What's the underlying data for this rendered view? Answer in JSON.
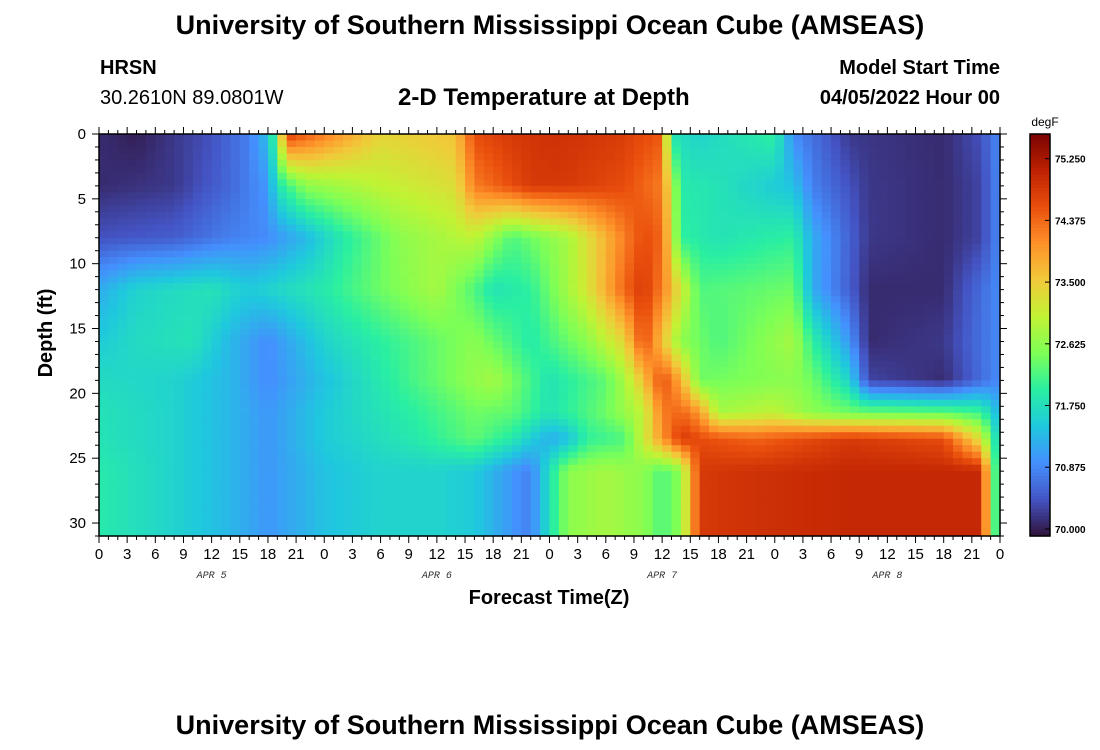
{
  "header": {
    "title": "University of Southern Mississippi Ocean Cube (AMSEAS)",
    "station": "HRSN",
    "coords": "30.2610N  89.0801W",
    "subtitle": "2-D Temperature at Depth",
    "model_start_label": "Model Start Time",
    "model_start_value": "04/05/2022 Hour 00"
  },
  "footer": {
    "title": "University of Southern Mississippi Ocean Cube (AMSEAS)"
  },
  "chart_data": {
    "type": "heatmap",
    "title": "2-D Temperature at Depth",
    "xlabel": "Forecast Time(Z)",
    "ylabel": "Depth (ft)",
    "x_hours_range": [
      0,
      96
    ],
    "ylim": [
      0,
      31
    ],
    "x_tick_labels": [
      "0",
      "3",
      "6",
      "9",
      "12",
      "15",
      "18",
      "21",
      "0",
      "3",
      "6",
      "9",
      "12",
      "15",
      "18",
      "21",
      "0",
      "3",
      "6",
      "9",
      "12",
      "15",
      "18",
      "21",
      "0",
      "3",
      "6",
      "9",
      "12",
      "15",
      "18",
      "21",
      "0"
    ],
    "y_ticks": [
      0,
      5,
      10,
      15,
      20,
      25,
      30
    ],
    "date_labels": [
      {
        "label": "APR 5",
        "hour": 12
      },
      {
        "label": "APR 6",
        "hour": 36
      },
      {
        "label": "APR 7",
        "hour": 60
      },
      {
        "label": "APR 8",
        "hour": 84
      }
    ],
    "colorbar": {
      "unit": "degF",
      "min": 69.9,
      "max": 75.6,
      "tick_values": [
        75.25,
        74.375,
        73.5,
        72.625,
        71.75,
        70.875,
        70.0
      ],
      "tick_labels": [
        "75.250",
        "74.375",
        "73.500",
        "72.625",
        "71.750",
        "70.875",
        "70.000"
      ],
      "colors": [
        "#30123b",
        "#4454c4",
        "#4490fe",
        "#1fc8de",
        "#29efa2",
        "#7dff56",
        "#c1f334",
        "#f1ca3a",
        "#fe922a",
        "#ea4f0d",
        "#be2102",
        "#7a0403"
      ]
    },
    "series": [
      {
        "depth": 0,
        "hours": [
          0,
          4,
          12,
          16,
          18,
          19,
          20,
          21,
          30,
          38,
          40,
          44,
          48,
          55,
          60,
          61,
          64,
          72,
          74,
          80,
          90,
          94,
          96
        ],
        "temps": [
          70.1,
          70.0,
          70.4,
          70.8,
          71.4,
          72.4,
          74.8,
          74.6,
          73.4,
          73.6,
          74.6,
          74.8,
          74.9,
          74.8,
          74.5,
          71.8,
          71.6,
          72.0,
          70.9,
          70.2,
          70.1,
          70.4,
          70.9
        ]
      },
      {
        "depth": 4,
        "hours": [
          0,
          8,
          14,
          18,
          19,
          22,
          30,
          38,
          40,
          46,
          50,
          56,
          60,
          62,
          66,
          74,
          76,
          82,
          90,
          94,
          96
        ],
        "temps": [
          70.1,
          70.2,
          70.6,
          71.0,
          71.8,
          72.6,
          73.0,
          73.3,
          74.2,
          74.8,
          74.8,
          74.6,
          74.2,
          71.9,
          71.8,
          71.4,
          70.8,
          70.2,
          70.1,
          70.3,
          70.9
        ]
      },
      {
        "depth": 8,
        "hours": [
          0,
          8,
          14,
          18,
          22,
          26,
          32,
          40,
          44,
          50,
          56,
          58,
          60,
          62,
          66,
          74,
          76,
          82,
          90,
          94,
          96
        ],
        "temps": [
          70.4,
          70.5,
          70.8,
          70.9,
          71.3,
          71.9,
          72.6,
          73.0,
          72.2,
          72.8,
          74.2,
          74.6,
          74.4,
          72.0,
          71.8,
          72.0,
          71.2,
          70.2,
          70.1,
          70.3,
          70.9
        ]
      },
      {
        "depth": 12,
        "hours": [
          0,
          4,
          12,
          16,
          24,
          30,
          36,
          40,
          42,
          46,
          52,
          56,
          58,
          60,
          64,
          74,
          76,
          80,
          82,
          90,
          96
        ],
        "temps": [
          71.2,
          71.6,
          71.8,
          71.5,
          71.9,
          72.4,
          72.8,
          72.2,
          71.8,
          72.0,
          73.2,
          74.4,
          74.8,
          74.2,
          72.2,
          72.4,
          71.2,
          70.5,
          70.1,
          70.1,
          70.9
        ]
      },
      {
        "depth": 16,
        "hours": [
          0,
          4,
          10,
          14,
          16,
          18,
          24,
          32,
          40,
          46,
          52,
          56,
          58,
          60,
          62,
          66,
          74,
          76,
          80,
          82,
          90,
          96
        ],
        "temps": [
          71.5,
          71.7,
          71.8,
          71.3,
          71.1,
          70.9,
          71.6,
          72.1,
          72.6,
          71.9,
          72.6,
          73.4,
          74.6,
          73.6,
          72.6,
          72.2,
          72.8,
          72.0,
          71.0,
          70.1,
          70.2,
          70.9
        ]
      },
      {
        "depth": 19,
        "hours": [
          0,
          8,
          14,
          18,
          24,
          34,
          42,
          48,
          54,
          56,
          58,
          60,
          62,
          64,
          74,
          76,
          78,
          80,
          82,
          90,
          96
        ],
        "temps": [
          71.7,
          71.6,
          71.3,
          70.9,
          71.4,
          72.2,
          72.8,
          71.8,
          72.3,
          72.8,
          73.6,
          74.6,
          73.8,
          72.4,
          72.6,
          72.4,
          72.0,
          71.6,
          70.3,
          70.1,
          70.9
        ]
      },
      {
        "depth": 21.5,
        "hours": [
          0,
          8,
          14,
          18,
          24,
          34,
          40,
          44,
          48,
          52,
          54,
          58,
          60,
          62,
          64,
          66,
          72,
          74,
          76,
          80,
          90,
          94,
          96
        ],
        "temps": [
          71.8,
          71.6,
          71.3,
          71.0,
          71.5,
          72.0,
          72.4,
          72.3,
          71.8,
          72.2,
          72.4,
          73.0,
          74.2,
          74.4,
          74.0,
          72.8,
          73.0,
          72.8,
          72.6,
          72.4,
          72.3,
          72.1,
          71.2
        ]
      },
      {
        "depth": 23.5,
        "hours": [
          0,
          8,
          14,
          18,
          24,
          34,
          40,
          44,
          48,
          50,
          52,
          56,
          60,
          62,
          64,
          70,
          80,
          90,
          94,
          96
        ],
        "temps": [
          71.8,
          71.6,
          71.3,
          71.0,
          71.5,
          71.9,
          72.3,
          71.9,
          71.2,
          71.4,
          72.0,
          72.2,
          74.0,
          74.8,
          74.6,
          74.4,
          74.8,
          74.6,
          73.2,
          71.4
        ]
      },
      {
        "depth": 26,
        "hours": [
          0,
          8,
          14,
          18,
          24,
          30,
          36,
          40,
          44,
          46,
          48,
          50,
          54,
          58,
          60,
          62,
          64,
          70,
          80,
          90,
          94,
          95,
          96
        ],
        "temps": [
          71.9,
          71.6,
          71.3,
          71.0,
          71.4,
          71.6,
          71.6,
          71.5,
          71.0,
          70.8,
          71.8,
          72.6,
          72.8,
          72.6,
          72.2,
          72.6,
          74.8,
          74.9,
          75.0,
          75.0,
          75.0,
          73.0,
          71.4
        ]
      },
      {
        "depth": 31,
        "hours": [
          0,
          8,
          14,
          18,
          24,
          30,
          36,
          40,
          44,
          46,
          48,
          50,
          54,
          58,
          60,
          62,
          64,
          70,
          80,
          90,
          94,
          95,
          96
        ],
        "temps": [
          71.9,
          71.6,
          71.3,
          71.0,
          71.4,
          71.6,
          71.6,
          71.5,
          71.0,
          70.8,
          71.8,
          72.6,
          72.8,
          72.6,
          72.2,
          72.6,
          74.8,
          74.9,
          75.0,
          75.0,
          75.0,
          73.0,
          71.4
        ]
      }
    ]
  }
}
